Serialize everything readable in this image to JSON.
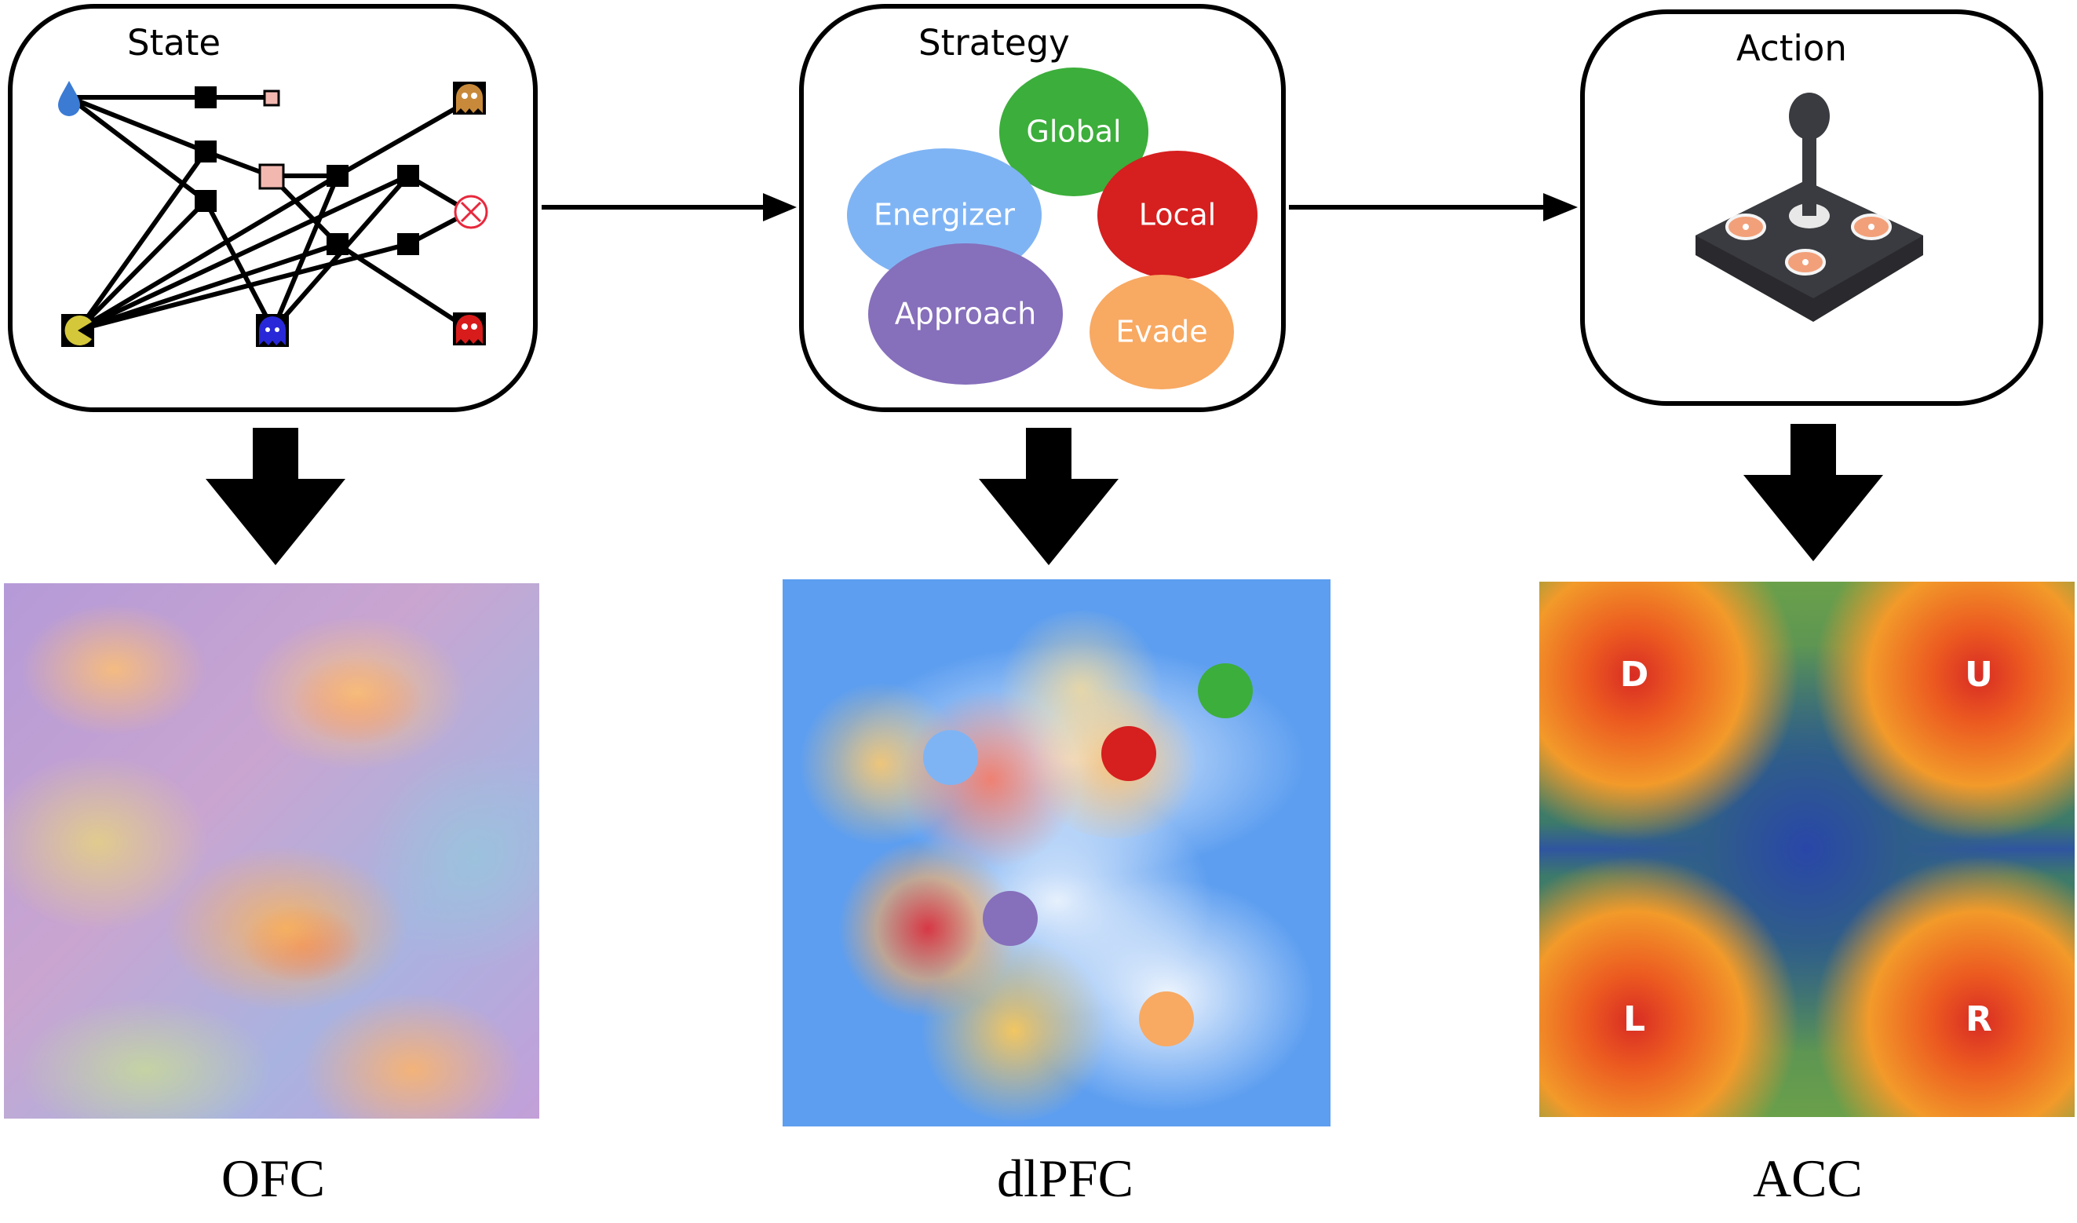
{
  "panels": {
    "state": {
      "title": "State"
    },
    "strategy": {
      "title": "Strategy",
      "bubbles": [
        {
          "label": "Global",
          "color": "#3cae3b"
        },
        {
          "label": "Local",
          "color": "#d61f1f"
        },
        {
          "label": "Energizer",
          "color": "#7fb4f4"
        },
        {
          "label": "Approach",
          "color": "#866fbb"
        },
        {
          "label": "Evade",
          "color": "#f8a962"
        }
      ]
    },
    "action": {
      "title": "Action"
    }
  },
  "maps": {
    "ofc": {
      "label": "OFC"
    },
    "dlpfc": {
      "label": "dlPFC"
    },
    "acc": {
      "label": "ACC",
      "letters": [
        "D",
        "U",
        "L",
        "R"
      ]
    }
  },
  "colors": {
    "dlpfc_background": "#5d9ef0",
    "acc_red": "#d93420",
    "acc_blue": "#2f4e9a",
    "ofc_purple": "#b38fd4"
  }
}
